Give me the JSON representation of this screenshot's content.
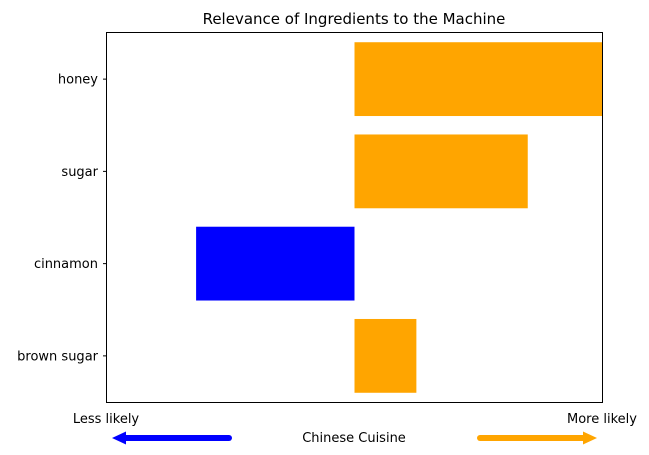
{
  "chart_data": {
    "type": "bar",
    "orientation": "horizontal",
    "title": "Relevance of Ingredients to the Machine",
    "categories": [
      "honey",
      "sugar",
      "cinnamon",
      "brown sugar"
    ],
    "values": [
      1.0,
      0.7,
      -0.64,
      0.25
    ],
    "xlim": [
      -1.0,
      1.0
    ],
    "xlabel": "Chinese Cuisine",
    "left_end_label": "Less likely",
    "right_end_label": "More likely",
    "grid": false,
    "colors": {
      "positive": "#ffa500",
      "negative": "#0000ff"
    }
  }
}
